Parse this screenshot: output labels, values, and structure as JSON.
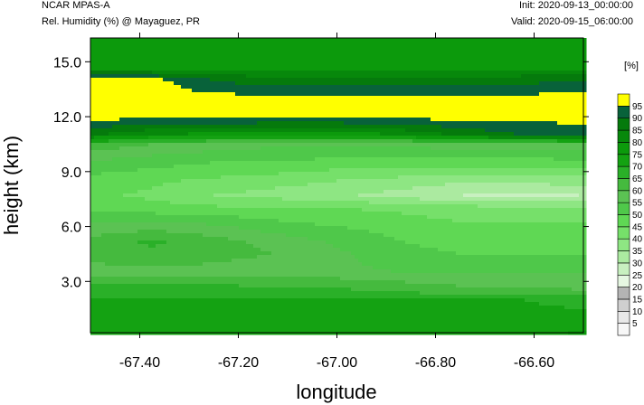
{
  "header": {
    "title": "NCAR MPAS-A",
    "subtitle": "Rel. Humidity (%) @ Mayaguez, PR",
    "init": "Init: 2020-09-13_00:00:00",
    "valid": "Valid: 2020-09-15_06:00:00"
  },
  "chart_data": {
    "type": "heatmap",
    "xlabel": "longitude",
    "ylabel": "height (km)",
    "xlim": [
      -67.5,
      -66.5
    ],
    "ylim": [
      0.2,
      16.3
    ],
    "xticks": [
      -67.4,
      -67.2,
      -67.0,
      -66.8,
      -66.6
    ],
    "xtick_labels": [
      "-67.40",
      "-67.20",
      "-67.00",
      "-66.80",
      "-66.60"
    ],
    "yticks": [
      3.0,
      6.0,
      9.0,
      12.0,
      15.0
    ],
    "ytick_labels": [
      "3.0",
      "6.0",
      "9.0",
      "12.0",
      "15.0"
    ],
    "colorbar": {
      "unit_label": "[%]",
      "levels": [
        5,
        10,
        15,
        20,
        25,
        30,
        35,
        40,
        45,
        50,
        55,
        60,
        65,
        70,
        75,
        80,
        85,
        90,
        95
      ],
      "colors": [
        "#f7f7f7",
        "#e8e8e8",
        "#cfcfcf",
        "#b4b4b4",
        "#e6f7e2",
        "#c8f0c0",
        "#abeaa0",
        "#8ee683",
        "#76e06a",
        "#5fd854",
        "#4fc84a",
        "#5bc253",
        "#45ba3e",
        "#2ab028",
        "#14a212",
        "#0c9a0c",
        "#07880b",
        "#057a0c",
        "#08623a",
        "#ffff00"
      ]
    },
    "field": {
      "x": [
        -67.5,
        -67.375,
        -67.25,
        -67.125,
        -67.0,
        -66.875,
        -66.75,
        -66.625,
        -66.5
      ],
      "y": [
        0.2,
        0.5,
        1.0,
        2.0,
        2.5,
        3.0,
        3.5,
        4.5,
        5.2,
        6.0,
        7.0,
        7.7,
        8.5,
        9.5,
        10.5,
        11.0,
        12.0,
        13.0,
        14.0,
        14.6,
        15.5,
        16.3
      ],
      "values": [
        [
          72,
          72,
          72,
          72,
          72,
          72,
          72,
          72,
          76
        ],
        [
          74,
          74,
          74,
          74,
          74,
          74,
          74,
          74,
          74
        ],
        [
          72,
          72,
          72,
          72,
          72,
          72,
          72,
          72,
          72
        ],
        [
          70,
          70,
          70,
          70,
          70,
          70,
          70,
          70,
          68
        ],
        [
          68,
          68,
          68,
          66,
          66,
          64,
          62,
          62,
          60
        ],
        [
          64,
          64,
          64,
          62,
          62,
          60,
          58,
          58,
          58
        ],
        [
          58,
          58,
          58,
          56,
          56,
          55,
          54,
          54,
          54
        ],
        [
          62,
          64,
          62,
          60,
          56,
          52,
          50,
          50,
          50
        ],
        [
          62,
          66,
          62,
          58,
          54,
          50,
          48,
          48,
          48
        ],
        [
          56,
          58,
          56,
          52,
          50,
          48,
          46,
          46,
          46
        ],
        [
          48,
          47,
          46,
          46,
          45,
          44,
          42,
          42,
          40
        ],
        [
          46,
          44,
          40,
          38,
          36,
          33,
          30,
          29,
          30
        ],
        [
          48,
          46,
          44,
          42,
          40,
          38,
          36,
          36,
          38
        ],
        [
          54,
          52,
          50,
          50,
          48,
          48,
          48,
          48,
          48
        ],
        [
          64,
          60,
          58,
          56,
          56,
          56,
          58,
          58,
          60
        ],
        [
          86,
          80,
          78,
          76,
          76,
          80,
          86,
          90,
          92
        ],
        [
          97,
          97,
          97,
          97,
          97,
          97,
          97,
          97,
          97
        ],
        [
          97,
          97,
          97,
          97,
          97,
          97,
          97,
          97,
          97
        ],
        [
          97,
          97,
          90,
          86,
          86,
          86,
          86,
          88,
          90
        ],
        [
          80,
          80,
          80,
          80,
          80,
          80,
          80,
          80,
          80
        ],
        [
          76,
          76,
          76,
          76,
          76,
          76,
          76,
          76,
          76
        ],
        [
          78,
          78,
          78,
          78,
          78,
          78,
          78,
          78,
          78
        ]
      ]
    }
  }
}
